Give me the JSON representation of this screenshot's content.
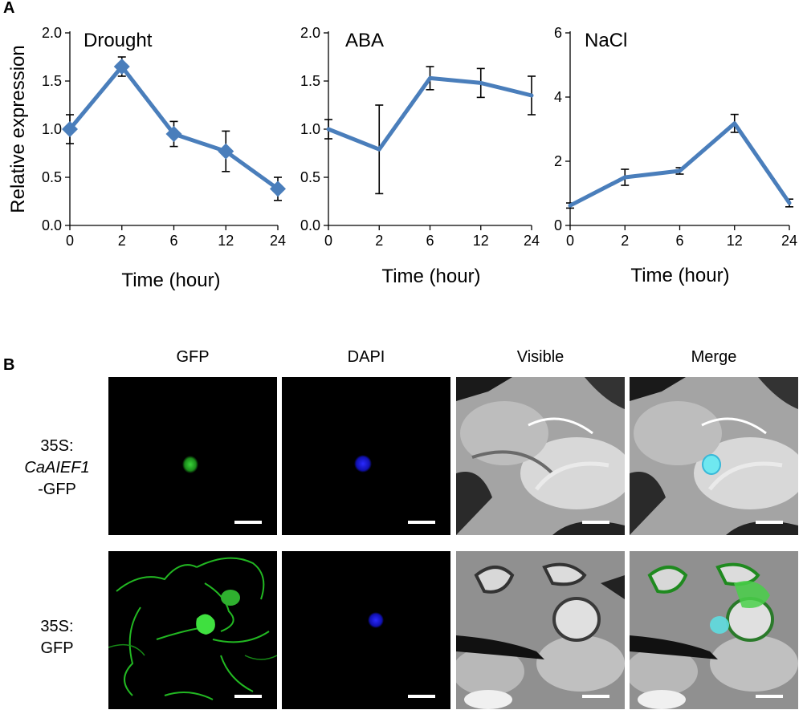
{
  "panel_labels": {
    "a": "A",
    "b": "B"
  },
  "chart_data": [
    {
      "type": "line",
      "title": "Drought",
      "ylabel": "Relative  expression",
      "xlabel": "Time  (hour)",
      "categories": [
        "0",
        "2",
        "6",
        "12",
        "24"
      ],
      "values": [
        1.0,
        1.65,
        0.95,
        0.77,
        0.38
      ],
      "errors": [
        0.15,
        0.1,
        0.13,
        0.21,
        0.12
      ],
      "ylim": [
        0,
        2.0
      ],
      "yticks": [
        "0.0",
        "0.5",
        "1.0",
        "1.5",
        "2.0"
      ],
      "ytick_values": [
        0,
        0.5,
        1.0,
        1.5,
        2.0
      ],
      "markers": "diamond",
      "color": "#4a7ebb"
    },
    {
      "type": "line",
      "title": "ABA",
      "xlabel": "Time  (hour)",
      "categories": [
        "0",
        "2",
        "6",
        "12",
        "24"
      ],
      "values": [
        1.0,
        0.79,
        1.53,
        1.48,
        1.35
      ],
      "errors": [
        0.1,
        0.46,
        0.12,
        0.15,
        0.2
      ],
      "ylim": [
        0,
        2.0
      ],
      "yticks": [
        "0.0",
        "0.5",
        "1.0",
        "1.5",
        "2.0"
      ],
      "ytick_values": [
        0,
        0.5,
        1.0,
        1.5,
        2.0
      ],
      "markers": "none",
      "color": "#4a7ebb"
    },
    {
      "type": "line",
      "title": "NaCl",
      "xlabel": "Time  (hour)",
      "categories": [
        "0",
        "2",
        "6",
        "12",
        "24"
      ],
      "values": [
        0.62,
        1.5,
        1.7,
        3.18,
        0.7
      ],
      "errors": [
        0.08,
        0.25,
        0.1,
        0.28,
        0.12
      ],
      "ylim": [
        0,
        6
      ],
      "yticks": [
        "0",
        "2",
        "4",
        "6"
      ],
      "ytick_values": [
        0,
        2,
        4,
        6
      ],
      "markers": "none",
      "color": "#4a7ebb"
    }
  ],
  "micrographs": {
    "columns": [
      "GFP",
      "DAPI",
      "Visible",
      "Merge"
    ],
    "rows": [
      {
        "line1": "35S:",
        "line2_italic": "CaAIEF1",
        "line3": "-GFP"
      },
      {
        "line1": "35S:",
        "line2": "GFP"
      }
    ]
  }
}
